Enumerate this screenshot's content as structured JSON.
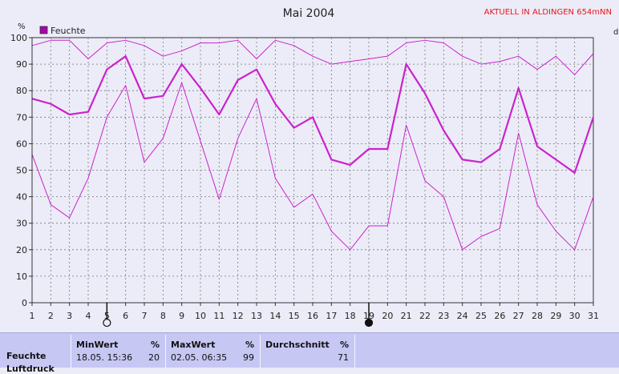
{
  "chart_data": {
    "type": "line",
    "title": "Mai 2004",
    "station": "AKTUELL IN ALDINGEN 654mNN",
    "y_unit": "%",
    "right_label": "d",
    "legend": {
      "label": "Feuchte",
      "color": "#aa00aa",
      "placement": "top-left"
    },
    "x": [
      1,
      2,
      3,
      4,
      5,
      6,
      7,
      8,
      9,
      10,
      11,
      12,
      13,
      14,
      15,
      16,
      17,
      18,
      19,
      20,
      21,
      22,
      23,
      24,
      25,
      26,
      27,
      28,
      29,
      30,
      31
    ],
    "xlim": [
      1,
      31
    ],
    "ylim": [
      0,
      100
    ],
    "yticks": [
      0,
      10,
      20,
      30,
      40,
      50,
      60,
      70,
      80,
      90,
      100
    ],
    "grid": true,
    "moon_markers": [
      {
        "day": 5,
        "phase": "full"
      },
      {
        "day": 19,
        "phase": "new"
      }
    ],
    "series": [
      {
        "role": "max",
        "color": "#cc22cc",
        "width": 1,
        "values": [
          97,
          99,
          99,
          92,
          98,
          99,
          97,
          93,
          95,
          98,
          98,
          99,
          92,
          99,
          97,
          93,
          90,
          91,
          92,
          93,
          98,
          99,
          98,
          93,
          90,
          91,
          93,
          88,
          93,
          86,
          94
        ]
      },
      {
        "role": "avg",
        "color": "#cc22cc",
        "width": 2.2,
        "values": [
          77,
          75,
          71,
          72,
          88,
          93,
          77,
          78,
          90,
          81,
          71,
          84,
          88,
          75,
          66,
          70,
          54,
          52,
          58,
          58,
          90,
          79,
          65,
          54,
          53,
          58,
          81,
          59,
          54,
          49,
          70
        ]
      },
      {
        "role": "min",
        "color": "#cc22cc",
        "width": 1,
        "values": [
          56,
          37,
          32,
          47,
          70,
          82,
          53,
          62,
          83,
          61,
          39,
          62,
          77,
          47,
          36,
          41,
          27,
          20,
          29,
          29,
          67,
          46,
          40,
          20,
          25,
          28,
          64,
          37,
          27,
          20,
          40
        ]
      }
    ]
  },
  "stats": {
    "rows": [
      {
        "name": "Feuchte",
        "min_time": "18.05.  15:36",
        "min_value": "20",
        "max_time": "02.05.  06:35",
        "max_value": "99",
        "avg_value": "71"
      },
      {
        "name": "Luftdruck"
      }
    ],
    "min_header": "MinWert",
    "max_header": "MaxWert",
    "avg_header": "Durchschnitt",
    "unit": "%"
  }
}
